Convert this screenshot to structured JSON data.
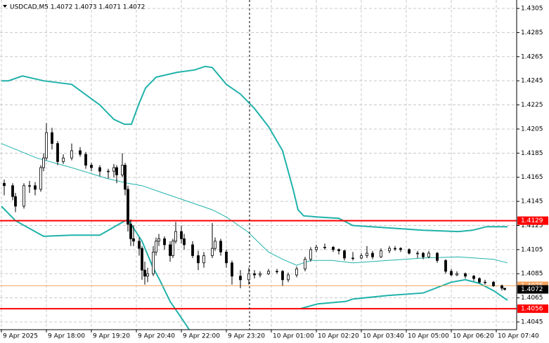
{
  "chart_data": {
    "type": "candlestick",
    "title": "USDCAD,M5  1.4072 1.4073 1.4071 1.4072",
    "xlim": [
      -0.5,
      183.25
    ],
    "ylim": [
      1.40386,
      1.4312
    ],
    "yticks": [
      1.4305,
      1.4285,
      1.4265,
      1.4245,
      1.4225,
      1.4205,
      1.4185,
      1.4165,
      1.4145,
      1.4125,
      1.4105,
      1.4085,
      1.4065,
      1.4045
    ],
    "xticks": [
      {
        "value": 0,
        "label": "9 Apr 2025"
      },
      {
        "value": 16,
        "label": "9 Apr 18:00"
      },
      {
        "value": 32,
        "label": "9 Apr 19:20"
      },
      {
        "value": 48,
        "label": "9 Apr 20:40"
      },
      {
        "value": 64,
        "label": "9 Apr 22:00"
      },
      {
        "value": 80,
        "label": "9 Apr 23:20"
      },
      {
        "value": 96,
        "label": "10 Apr 01:00"
      },
      {
        "value": 112,
        "label": "10 Apr 02:20"
      },
      {
        "value": 128,
        "label": "10 Apr 03:40"
      },
      {
        "value": 144,
        "label": "10 Apr 05:00"
      },
      {
        "value": 160,
        "label": "10 Apr 06:20"
      },
      {
        "value": 176,
        "label": "10 Apr 07:40"
      }
    ],
    "grid": true,
    "candles": {
      "x": [
        1,
        4,
        5,
        8,
        10,
        12,
        14,
        15,
        16,
        18,
        20,
        22,
        25,
        28,
        30,
        32,
        35,
        38,
        40,
        41,
        43,
        44,
        45,
        46,
        47,
        49,
        50,
        51,
        52,
        54,
        55,
        56,
        58,
        60,
        61,
        62,
        64,
        65,
        68,
        70,
        72,
        75,
        76,
        78,
        80,
        82,
        85,
        88,
        90,
        92,
        95,
        98,
        100,
        102,
        105,
        108,
        110,
        112,
        115,
        118,
        120,
        122,
        125,
        128,
        130,
        132,
        135,
        138,
        140,
        142,
        145,
        148,
        150,
        152,
        155,
        158,
        160,
        162,
        165,
        168,
        170,
        172,
        175,
        178,
        179
      ],
      "open": [
        1.416,
        1.4158,
        1.4149,
        1.4141,
        1.4158,
        1.4158,
        1.4155,
        1.4173,
        1.4181,
        1.4202,
        1.4193,
        1.4178,
        1.4181,
        1.4187,
        1.4184,
        1.4175,
        1.4173,
        1.417,
        1.417,
        1.4173,
        1.4167,
        1.4175,
        1.4155,
        1.4126,
        1.4114,
        1.4112,
        1.4106,
        1.4088,
        1.4083,
        1.4085,
        1.4103,
        1.4112,
        1.4114,
        1.4109,
        1.41,
        1.4112,
        1.412,
        1.4114,
        1.4109,
        1.41,
        1.4094,
        1.41,
        1.4106,
        1.4112,
        1.4103,
        1.4094,
        1.4083,
        1.408,
        1.4085,
        1.4084,
        1.4085,
        1.4087,
        1.4087,
        1.408,
        1.4084,
        1.4089,
        1.4097,
        1.4105,
        1.4107,
        1.4107,
        1.4105,
        1.4104,
        1.4098,
        1.4098,
        1.41,
        1.4102,
        1.4099,
        1.4104,
        1.4106,
        1.4106,
        1.4105,
        1.4102,
        1.4102,
        1.4099,
        1.4102,
        1.4096,
        1.4087,
        1.4084,
        1.4085,
        1.4083,
        1.4081,
        1.4078,
        1.4078,
        1.4075,
        1.4073
      ],
      "high": [
        1.4163,
        1.416,
        1.4152,
        1.416,
        1.4162,
        1.4161,
        1.4175,
        1.4185,
        1.421,
        1.4206,
        1.4195,
        1.4184,
        1.4193,
        1.419,
        1.4186,
        1.4177,
        1.4175,
        1.4172,
        1.4176,
        1.4175,
        1.4185,
        1.4177,
        1.4158,
        1.413,
        1.4125,
        1.4115,
        1.4108,
        1.4095,
        1.409,
        1.4108,
        1.4115,
        1.4118,
        1.4116,
        1.4112,
        1.4114,
        1.4128,
        1.4125,
        1.4118,
        1.4112,
        1.4104,
        1.4103,
        1.4127,
        1.4115,
        1.4114,
        1.4105,
        1.4096,
        1.4088,
        1.409,
        1.4088,
        1.4087,
        1.4089,
        1.4089,
        1.4088,
        1.4086,
        1.4091,
        1.4099,
        1.4107,
        1.4109,
        1.411,
        1.4108,
        1.4106,
        1.4105,
        1.4103,
        1.4102,
        1.4108,
        1.4104,
        1.4106,
        1.4108,
        1.4108,
        1.4107,
        1.4106,
        1.4104,
        1.4103,
        1.4104,
        1.4103,
        1.4097,
        1.4089,
        1.4087,
        1.4086,
        1.4084,
        1.4082,
        1.408,
        1.4079,
        1.4076,
        1.4073
      ],
      "low": [
        1.415,
        1.4146,
        1.4136,
        1.4139,
        1.4152,
        1.415,
        1.4153,
        1.417,
        1.4179,
        1.4188,
        1.4175,
        1.4176,
        1.4179,
        1.4182,
        1.4172,
        1.417,
        1.4166,
        1.4164,
        1.4165,
        1.416,
        1.4165,
        1.415,
        1.412,
        1.4108,
        1.4108,
        1.41,
        1.408,
        1.4076,
        1.4078,
        1.4083,
        1.41,
        1.4108,
        1.4105,
        1.4095,
        1.4098,
        1.411,
        1.411,
        1.4105,
        1.4098,
        1.4088,
        1.409,
        1.4098,
        1.4104,
        1.41,
        1.409,
        1.4076,
        1.4073,
        1.4076,
        1.4081,
        1.4082,
        1.4084,
        1.4085,
        1.4075,
        1.4078,
        1.4082,
        1.4087,
        1.4095,
        1.4103,
        1.4105,
        1.4103,
        1.4101,
        1.4096,
        1.4096,
        1.4097,
        1.4098,
        1.4097,
        1.4098,
        1.4102,
        1.4104,
        1.4103,
        1.4101,
        1.4098,
        1.4097,
        1.4098,
        1.4094,
        1.4085,
        1.4083,
        1.4083,
        1.4081,
        1.4079,
        1.4077,
        1.4076,
        1.4074,
        1.4071,
        1.4071
      ],
      "close": [
        1.4158,
        1.4149,
        1.4141,
        1.4158,
        1.4158,
        1.4155,
        1.4173,
        1.4181,
        1.4202,
        1.4193,
        1.4178,
        1.4181,
        1.4187,
        1.4184,
        1.4175,
        1.4173,
        1.417,
        1.417,
        1.4173,
        1.4167,
        1.4175,
        1.4155,
        1.4126,
        1.4114,
        1.4112,
        1.4106,
        1.4088,
        1.4083,
        1.4085,
        1.4103,
        1.4112,
        1.4114,
        1.4109,
        1.41,
        1.4112,
        1.412,
        1.4114,
        1.4109,
        1.41,
        1.4094,
        1.41,
        1.4106,
        1.4112,
        1.4103,
        1.4094,
        1.4083,
        1.408,
        1.4085,
        1.4084,
        1.4085,
        1.4087,
        1.4087,
        1.408,
        1.4084,
        1.4089,
        1.4097,
        1.4105,
        1.4107,
        1.4107,
        1.4105,
        1.4104,
        1.4098,
        1.4098,
        1.41,
        1.4102,
        1.4099,
        1.4104,
        1.4106,
        1.4106,
        1.4105,
        1.4102,
        1.4102,
        1.4099,
        1.4102,
        1.4096,
        1.4087,
        1.4084,
        1.4085,
        1.4083,
        1.4081,
        1.4078,
        1.4078,
        1.4075,
        1.4073,
        1.4072
      ]
    },
    "bands": [
      {
        "color": "#20b2aa",
        "width": 2,
        "x": [
          0,
          2.5,
          7.5,
          15,
          25,
          35,
          40,
          43.75,
          46.25,
          48.75,
          51.25,
          55,
          62.5,
          68.75,
          72.5,
          75,
          80,
          85,
          90,
          95,
          100,
          103.75,
          105.5,
          107.5,
          112.5,
          120,
          125,
          137.5,
          150,
          162.5,
          167.5,
          172.5,
          180
        ],
        "values": [
          1.4245,
          1.4245,
          1.4249,
          1.4245,
          1.4242,
          1.4225,
          1.4213,
          1.4209,
          1.4209,
          1.4225,
          1.4239,
          1.4248,
          1.4252,
          1.4254,
          1.4257,
          1.4256,
          1.4242,
          1.4234,
          1.4222,
          1.4207,
          1.4187,
          1.4155,
          1.4138,
          1.4133,
          1.4132,
          1.4131,
          1.4125,
          1.4123,
          1.4121,
          1.412,
          1.4121,
          1.4124,
          1.4124
        ]
      },
      {
        "color": "#20b2aa",
        "width": 1,
        "x": [
          0,
          12.5,
          25,
          37.5,
          45,
          50,
          57.5,
          65,
          75,
          80,
          87.5,
          95,
          100,
          105,
          110,
          117.5,
          125,
          137.5,
          150,
          162.5,
          175,
          180
        ],
        "values": [
          1.4193,
          1.4181,
          1.4173,
          1.4164,
          1.416,
          1.4158,
          1.4152,
          1.4146,
          1.4138,
          1.4132,
          1.412,
          1.4103,
          1.4097,
          1.4092,
          1.4096,
          1.4096,
          1.4094,
          1.4096,
          1.4098,
          1.4099,
          1.4097,
          1.4094
        ]
      },
      {
        "color": "#20b2aa",
        "width": 2,
        "x": [
          0,
          5,
          15,
          25,
          35,
          42.5,
          45,
          50,
          53.75,
          56.25,
          60,
          65,
          70,
          100,
          106.25,
          112.5,
          122.5,
          125,
          137.5,
          150,
          160,
          165,
          170,
          175,
          180
        ],
        "values": [
          1.4141,
          1.4129,
          1.4116,
          1.4117,
          1.4117,
          1.4127,
          1.413,
          1.4112,
          1.4091,
          1.408,
          1.4062,
          1.4045,
          1.4027,
          null,
          1.4056,
          1.406,
          1.4062,
          1.4064,
          1.4067,
          1.4069,
          1.4078,
          1.408,
          1.4077,
          1.4071,
          1.4063
        ]
      }
    ],
    "levels": [
      {
        "value": 1.4129,
        "color": "#ff0000"
      },
      {
        "value": 1.4075,
        "color": "#f4a460"
      },
      {
        "value": 1.4056,
        "color": "#ff0000"
      }
    ],
    "current_price": 1.4072
  }
}
